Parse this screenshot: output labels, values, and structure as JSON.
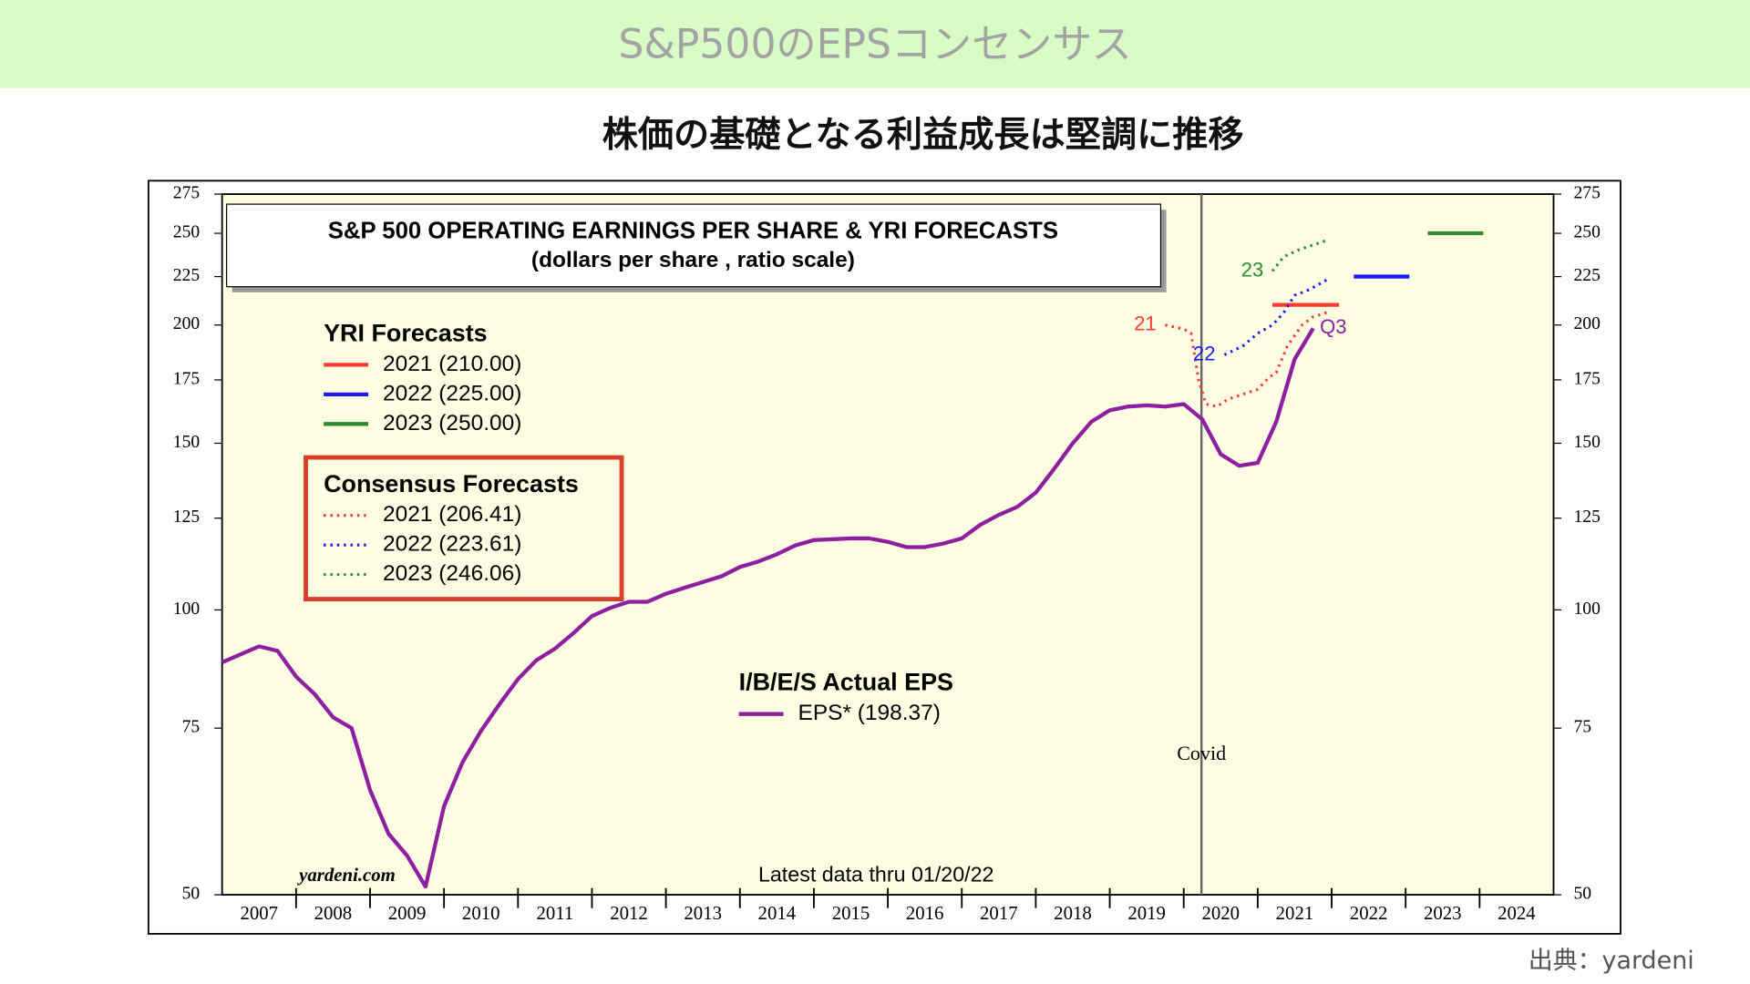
{
  "header": {
    "title": "S&P500のEPSコンセンサス"
  },
  "subtitle": "株価の基礎となる利益成長は堅調に推移",
  "source": "出典：yardeni",
  "chart_data": {
    "type": "line",
    "title": "S&P 500 OPERATING EARNINGS PER SHARE & YRI FORECASTS",
    "subtitle": "(dollars per share , ratio scale)",
    "log_scale": true,
    "ylim": [
      50,
      275
    ],
    "yticks": [
      50,
      75,
      100,
      125,
      150,
      175,
      200,
      225,
      250,
      275
    ],
    "xlim": [
      2007,
      2025
    ],
    "categories": [
      "2007",
      "2008",
      "2009",
      "2010",
      "2011",
      "2012",
      "2013",
      "2014",
      "2015",
      "2016",
      "2017",
      "2018",
      "2019",
      "2020",
      "2021",
      "2022",
      "2023",
      "2024"
    ],
    "annotation": {
      "x": 2020.24,
      "label": "Covid"
    },
    "watermark": "yardeni.com",
    "note": "Latest data thru 01/20/22",
    "series_groups": [
      {
        "title": "YRI Forecasts",
        "style": "solid",
        "series": [
          {
            "name": "2021 (210.00)",
            "color": "#ff3b2f",
            "x": [
              2021.2,
              2022.1
            ],
            "values": [
              210,
              210
            ]
          },
          {
            "name": "2022 (225.00)",
            "color": "#1a1aff",
            "x": [
              2022.3,
              2023.05
            ],
            "values": [
              225,
              225
            ]
          },
          {
            "name": "2023 (250.00)",
            "color": "#2e8b2e",
            "x": [
              2023.3,
              2024.05
            ],
            "values": [
              250,
              250
            ]
          }
        ]
      },
      {
        "title": "Consensus Forecasts",
        "style": "dotted",
        "series": [
          {
            "name": "2021 (206.41)",
            "color": "#ff3b2f",
            "line_label": "21",
            "label_at": "start",
            "x": [
              2019.75,
              2020.0,
              2020.1,
              2020.2,
              2020.3,
              2020.45,
              2020.6,
              2020.8,
              2021.0,
              2021.15,
              2021.25,
              2021.4,
              2021.6,
              2021.75,
              2021.95
            ],
            "values": [
              200,
              198,
              196,
              175,
              165,
              164,
              167,
              169,
              171,
              176,
              178,
              190,
              200,
              204,
              206.41
            ]
          },
          {
            "name": "2022 (223.61)",
            "color": "#1a1aff",
            "line_label": "22",
            "label_at": "start",
            "x": [
              2020.55,
              2020.8,
              2021.0,
              2021.2,
              2021.35,
              2021.5,
              2021.7,
              2021.95
            ],
            "values": [
              186,
              190,
              196,
              200,
              206,
              215,
              218,
              223.61
            ]
          },
          {
            "name": "2023 (246.06)",
            "color": "#2e8b2e",
            "line_label": "23",
            "label_at": "start",
            "x": [
              2021.2,
              2021.35,
              2021.55,
              2021.75,
              2021.95
            ],
            "values": [
              228,
              236,
              240,
              243,
              246.06
            ]
          }
        ]
      },
      {
        "title": "I/B/E/S Actual EPS",
        "style": "solid",
        "series": [
          {
            "name": "EPS* (198.37)",
            "color": "#8e1fa0",
            "line_label": "Q3",
            "label_at": "end",
            "x": [
              2007.0,
              2007.5,
              2007.75,
              2008.0,
              2008.25,
              2008.5,
              2008.75,
              2009.0,
              2009.25,
              2009.5,
              2009.75,
              2010.0,
              2010.25,
              2010.5,
              2010.75,
              2011.0,
              2011.25,
              2011.5,
              2011.75,
              2012.0,
              2012.25,
              2012.5,
              2012.75,
              2013.0,
              2013.25,
              2013.5,
              2013.75,
              2014.0,
              2014.25,
              2014.5,
              2014.75,
              2015.0,
              2015.5,
              2015.75,
              2016.0,
              2016.25,
              2016.5,
              2016.75,
              2017.0,
              2017.25,
              2017.5,
              2017.75,
              2018.0,
              2018.25,
              2018.5,
              2018.75,
              2019.0,
              2019.25,
              2019.5,
              2019.75,
              2020.0,
              2020.25,
              2020.5,
              2020.75,
              2021.0,
              2021.25,
              2021.5,
              2021.75
            ],
            "values": [
              88,
              91.5,
              90.5,
              85,
              81.5,
              77,
              75,
              64.5,
              58,
              55,
              51,
              62,
              69,
              74.5,
              79.5,
              84.5,
              88.5,
              91,
              94.5,
              98.5,
              100.5,
              102,
              102,
              104,
              105.5,
              107,
              108.5,
              111,
              112.5,
              114.5,
              117,
              118.5,
              119,
              119,
              118,
              116.5,
              116.5,
              117.5,
              119,
              123,
              126,
              128.5,
              133,
              141,
              150,
              158,
              162.5,
              164,
              164.5,
              164,
              165,
              159,
              146,
              142,
              143,
              158,
              184,
              198.37
            ]
          }
        ]
      }
    ]
  }
}
